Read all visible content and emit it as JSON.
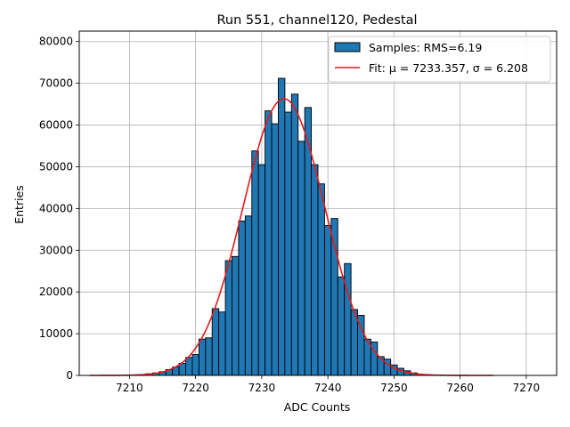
{
  "chart_data": {
    "type": "bar",
    "title": "Run 551, channel120, Pedestal",
    "xlabel": "ADC Counts",
    "ylabel": "Entries",
    "xlim": [
      7202.4,
      7274.6
    ],
    "ylim": [
      0,
      82500
    ],
    "xticks": [
      7210,
      7220,
      7230,
      7240,
      7250,
      7260,
      7270
    ],
    "yticks": [
      0,
      10000,
      20000,
      30000,
      40000,
      50000,
      60000,
      70000,
      80000
    ],
    "grid": true,
    "legend_position": "top-right",
    "bin_width": 1,
    "series": [
      {
        "name": "Samples: RMS=6.19",
        "kind": "histogram",
        "color": "#1f77b4",
        "edge_color": "#000000",
        "bin_centers": [
          7212,
          7213,
          7214,
          7215,
          7216,
          7217,
          7218,
          7219,
          7220,
          7221,
          7222,
          7223,
          7224,
          7225,
          7226,
          7227,
          7228,
          7229,
          7230,
          7231,
          7232,
          7233,
          7234,
          7235,
          7236,
          7237,
          7238,
          7239,
          7240,
          7241,
          7242,
          7243,
          7244,
          7245,
          7246,
          7247,
          7248,
          7249,
          7250,
          7251,
          7252,
          7253
        ],
        "values": [
          200,
          400,
          600,
          900,
          1400,
          2000,
          2900,
          4300,
          5000,
          8700,
          9000,
          16000,
          15200,
          27500,
          28500,
          37000,
          38200,
          53800,
          50500,
          63400,
          60300,
          71200,
          63100,
          67400,
          56100,
          64200,
          50500,
          45900,
          35900,
          37600,
          23600,
          26800,
          15800,
          14400,
          8700,
          8000,
          4500,
          3900,
          2500,
          1700,
          1100,
          600
        ]
      },
      {
        "name": "Fit: μ = 7233.357, σ = 6.208",
        "kind": "gaussian-fit",
        "color": "#e41a1c",
        "mu": 7233.357,
        "sigma": 6.208,
        "amplitude": 66300,
        "x_range": [
          7204,
          7265
        ]
      }
    ]
  }
}
